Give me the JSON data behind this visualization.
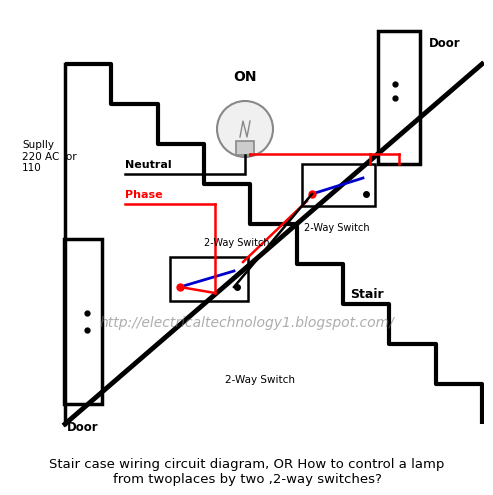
{
  "title": "Stair case wiring circuit diagram, OR How to control a lamp\nfrom twoplaces by two ,2-way switches?",
  "title_fontsize": 9.5,
  "watermark": "http://electricaltechnology1.blogspot.com/",
  "watermark_fontsize": 10,
  "bg_color": "#ffffff",
  "black": "#000000",
  "red": "#ff0000",
  "blue": "#0000cc",
  "gray": "#888888",
  "label_supply": "Suplly\n220 AC  or\n110",
  "label_neutral": "Neutral",
  "label_phase": "Phase",
  "label_on": "ON",
  "label_stair": "Stair",
  "label_door_top": "Door",
  "label_door_bottom": "Door",
  "label_switch1": "2-Way Switch",
  "label_switch2": "2-Way Switch",
  "label_switch3": "2-Way Switch"
}
